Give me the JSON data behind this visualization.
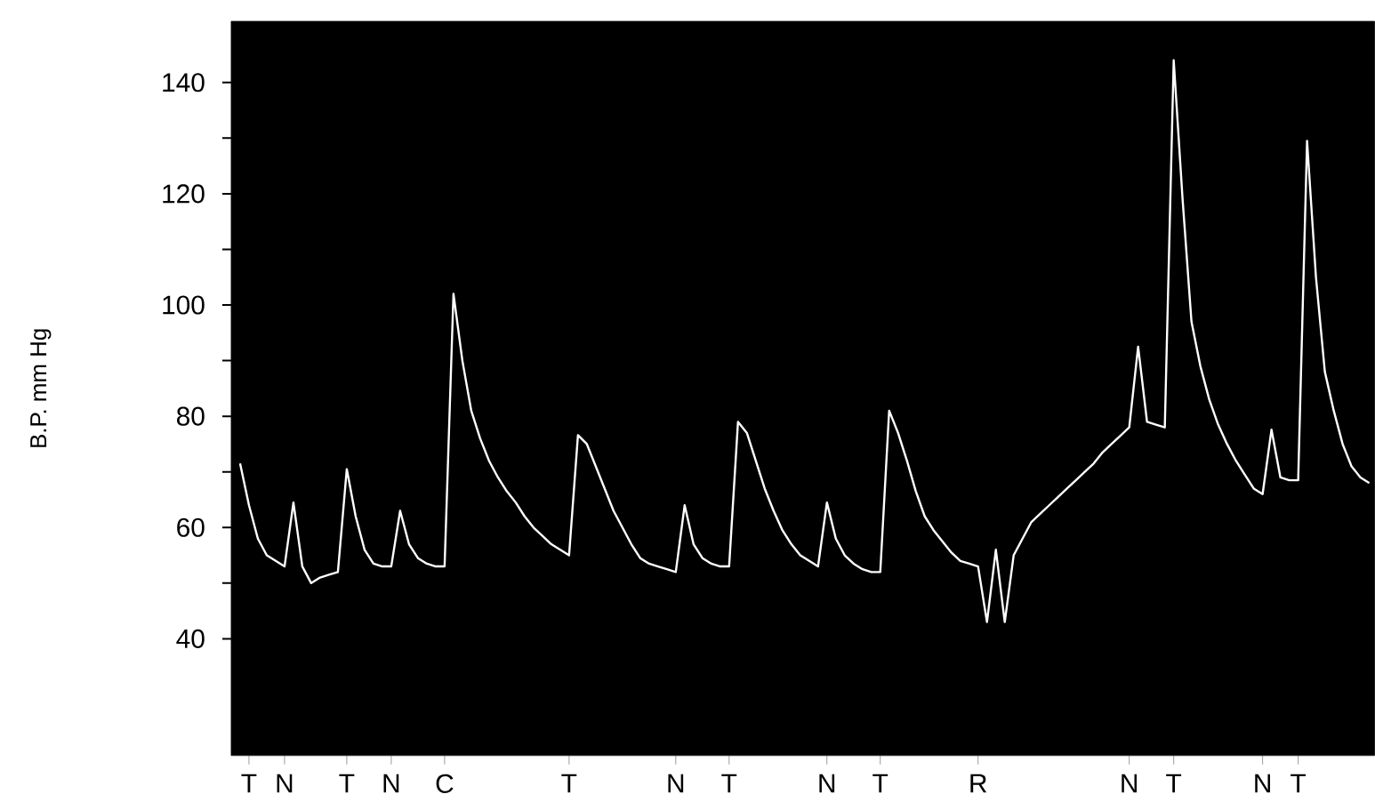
{
  "chart_data": {
    "type": "line",
    "ylabel": "B.P. mm Hg",
    "categories": [
      null,
      null,
      "T",
      null,
      null,
      null,
      "N",
      null,
      null,
      null,
      null,
      null,
      null,
      "T",
      null,
      null,
      null,
      null,
      "N",
      null,
      null,
      null,
      null,
      null,
      "C",
      null,
      null,
      null,
      null,
      null,
      null,
      null,
      null,
      null,
      null,
      null,
      null,
      null,
      "T",
      null,
      null,
      null,
      null,
      null,
      null,
      null,
      null,
      null,
      null,
      null,
      "N",
      null,
      null,
      null,
      null,
      null,
      "T",
      null,
      null,
      null,
      null,
      null,
      null,
      null,
      null,
      null,
      null,
      "N",
      null,
      null,
      null,
      null,
      null,
      "T",
      null,
      null,
      null,
      null,
      null,
      null,
      null,
      null,
      null,
      null,
      "R",
      null,
      null,
      null,
      null,
      null,
      null,
      null,
      null,
      null,
      null,
      null,
      null,
      null,
      null,
      null,
      null,
      "N",
      null,
      null,
      null,
      null,
      "T",
      null,
      null,
      null,
      null,
      null,
      null,
      null,
      null,
      null,
      "N",
      null,
      null,
      null,
      "T",
      null,
      null,
      null,
      null,
      null,
      null,
      null,
      null
    ],
    "series": [
      {
        "color": "#ffffff",
        "values": [
          null,
          71.5,
          64,
          58,
          55,
          54,
          53,
          64.5,
          53,
          50,
          51,
          51.5,
          52,
          70.5,
          62,
          56,
          53.5,
          53,
          53,
          63,
          57,
          54.5,
          53.5,
          53,
          53,
          102,
          90,
          81,
          76,
          72,
          69,
          66.5,
          64.5,
          62,
          60,
          58.5,
          57,
          56,
          55,
          76.6,
          75,
          71,
          67,
          63,
          60,
          57,
          54.5,
          53.5,
          53,
          52.5,
          52,
          64,
          57,
          54.5,
          53.5,
          53,
          53,
          79,
          77,
          72,
          67,
          63,
          59.5,
          57,
          55,
          54,
          53,
          64.5,
          58,
          55,
          53.5,
          52.5,
          52,
          52,
          81,
          77,
          72,
          66.5,
          62,
          59.5,
          57.5,
          55.5,
          54,
          53.5,
          53,
          43,
          56,
          43,
          55,
          58,
          61,
          62.5,
          64,
          65.5,
          67,
          68.5,
          70,
          71.5,
          73.5,
          75,
          76.5,
          78,
          92.5,
          79,
          78.5,
          78,
          144,
          119,
          97,
          89,
          83,
          78.5,
          75,
          72,
          69.5,
          67,
          66,
          77.6,
          69,
          68.5,
          68.5,
          129.5,
          105,
          88,
          81,
          75,
          71,
          69,
          68
        ]
      }
    ],
    "ylim": [
      19,
      151
    ],
    "yticks": [
      40,
      {
        "value": 50,
        "label": null
      },
      60,
      {
        "value": 70,
        "label": null
      },
      80,
      {
        "value": 90,
        "label": null
      },
      100,
      {
        "value": 110,
        "label": null
      },
      120,
      {
        "value": 130,
        "label": null
      },
      140
    ],
    "grid": false,
    "marker": "none",
    "line_style": "solid"
  }
}
